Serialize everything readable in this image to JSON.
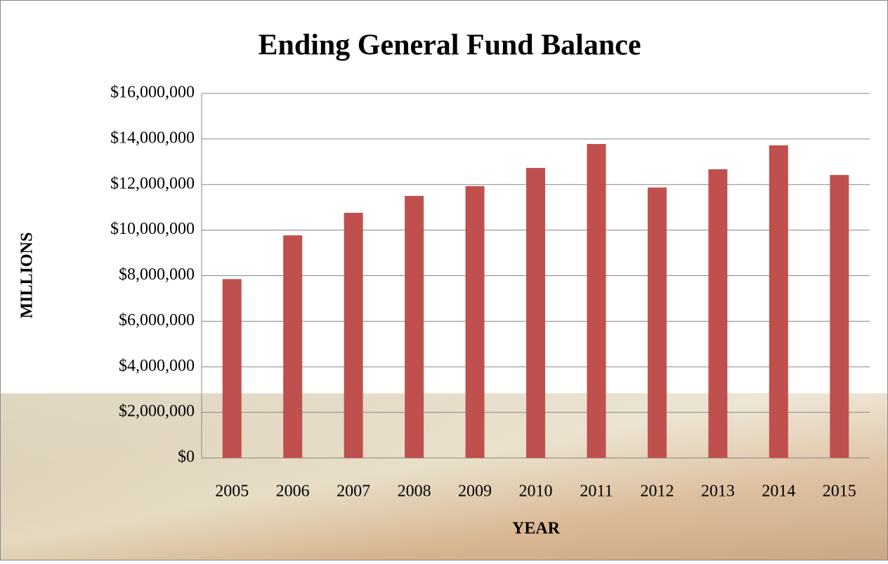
{
  "chart_data": {
    "type": "bar",
    "title": "Ending General Fund Balance",
    "x_label": "YEAR",
    "y_label": "MILLIONS",
    "categories": [
      "2005",
      "2006",
      "2007",
      "2008",
      "2009",
      "2010",
      "2011",
      "2012",
      "2013",
      "2014",
      "2015"
    ],
    "values": [
      7850000,
      9770000,
      10760000,
      11500000,
      11930000,
      12730000,
      13780000,
      11870000,
      12670000,
      13720000,
      12420000
    ],
    "color": "#c0504d",
    "ylim": [
      0,
      16000000
    ],
    "yticks": [
      {
        "value": 0,
        "label": "$0"
      },
      {
        "value": 2000000,
        "label": "$2,000,000"
      },
      {
        "value": 4000000,
        "label": "$4,000,000"
      },
      {
        "value": 6000000,
        "label": "$6,000,000"
      },
      {
        "value": 8000000,
        "label": "$8,000,000"
      },
      {
        "value": 10000000,
        "label": "$10,000,000"
      },
      {
        "value": 12000000,
        "label": "$12,000,000"
      },
      {
        "value": 14000000,
        "label": "$14,000,000"
      },
      {
        "value": 16000000,
        "label": "$16,000,000"
      }
    ],
    "grid": true
  }
}
